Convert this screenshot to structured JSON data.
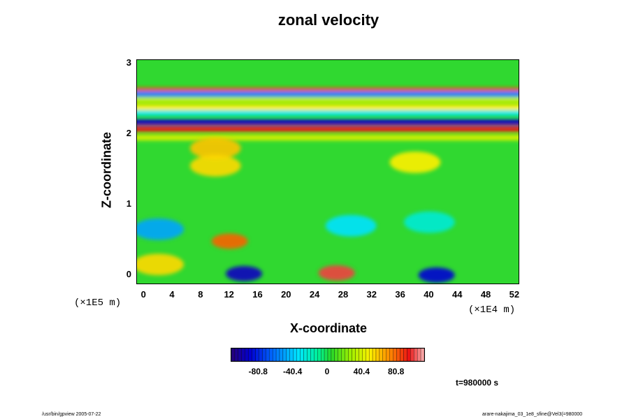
{
  "chart_data": {
    "type": "heatmap",
    "title": "zonal velocity",
    "xlabel": "X-coordinate",
    "ylabel": "Z-coordinate",
    "x_ticks": [
      "0",
      "4",
      "8",
      "12",
      "16",
      "20",
      "24",
      "28",
      "32",
      "36",
      "40",
      "44",
      "48",
      "52"
    ],
    "y_ticks": [
      "0",
      "1",
      "2",
      "3"
    ],
    "x_multiplier": "(×1E4 m)",
    "y_multiplier": "(×1E5 m)",
    "xlim": [
      -1,
      52.5
    ],
    "ylim": [
      -0.12,
      3.05
    ],
    "colorbar": {
      "tick_labels": [
        "-80.8",
        "-40.4",
        "0",
        "40.4",
        "80.8"
      ],
      "tick_values": [
        -80.8,
        -40.4,
        0,
        40.4,
        80.8
      ],
      "range": [
        -113,
        113
      ]
    },
    "bands": [
      {
        "z": 2.62,
        "value": 85
      },
      {
        "z": 2.57,
        "value": -60
      },
      {
        "z": 2.48,
        "value": 35
      },
      {
        "z": 2.38,
        "value": 50
      },
      {
        "z": 2.3,
        "value": -30
      },
      {
        "z": 2.17,
        "value": -95
      },
      {
        "z": 2.07,
        "value": 95
      },
      {
        "z": 1.95,
        "value": 40
      }
    ],
    "features": [
      {
        "x": 14,
        "z": 0.02,
        "value": -95
      },
      {
        "x": 27,
        "z": 0.03,
        "value": 100
      },
      {
        "x": 41,
        "z": 0.0,
        "value": -90
      },
      {
        "x": 12,
        "z": 0.48,
        "value": 80
      },
      {
        "x": 2,
        "z": 0.65,
        "value": -50
      },
      {
        "x": 2,
        "z": 0.15,
        "value": 55
      },
      {
        "x": 10,
        "z": 1.8,
        "value": 60
      },
      {
        "x": 10,
        "z": 1.55,
        "value": 55
      },
      {
        "x": 38,
        "z": 1.6,
        "value": 50
      },
      {
        "x": 29,
        "z": 0.7,
        "value": -35
      },
      {
        "x": 40,
        "z": 0.75,
        "value": -25
      }
    ]
  },
  "timestamp": "t=980000 s",
  "footer_left": "/usr/bin/gpview 2005-07-22",
  "footer_right": "arare-nakajima_03_1e8_sfine@Vel3(=980000"
}
